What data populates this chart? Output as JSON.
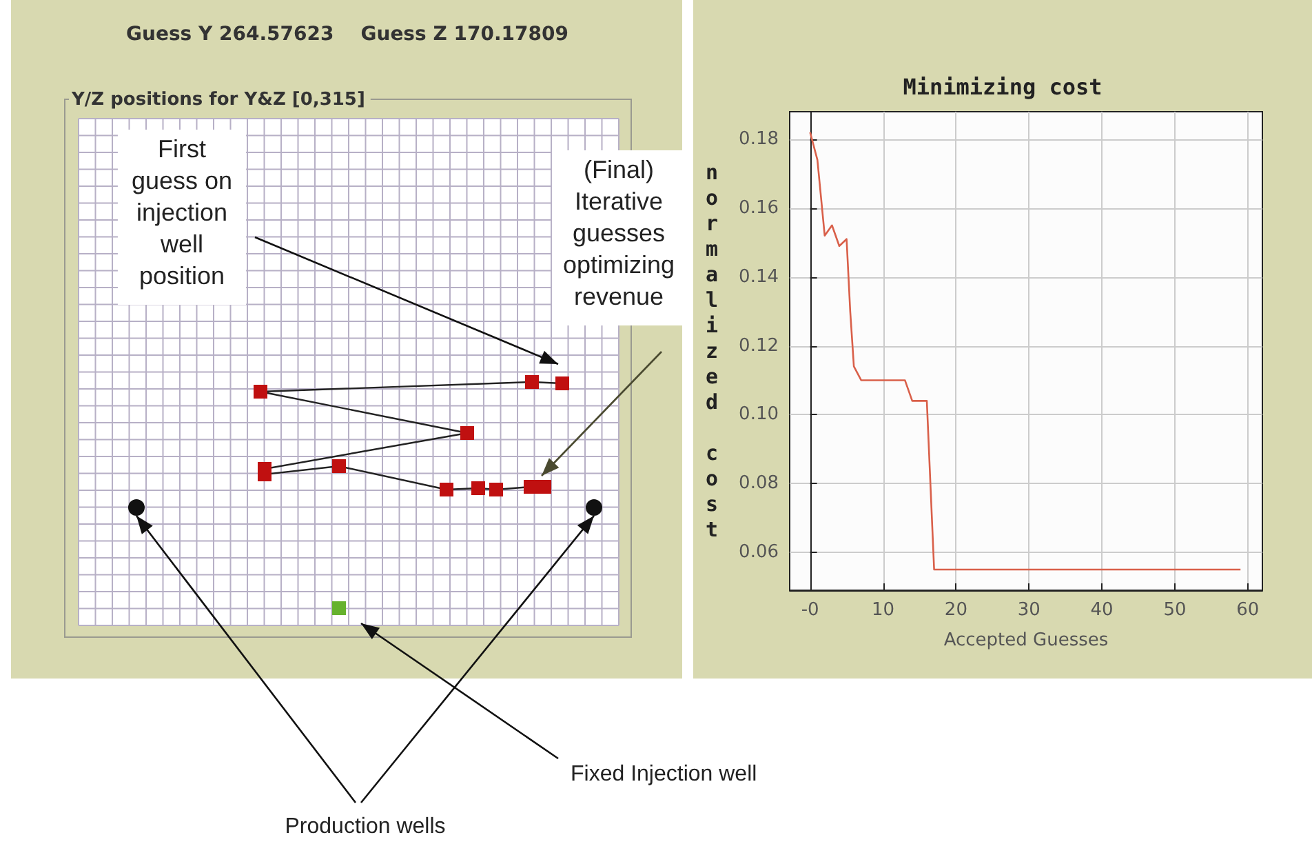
{
  "chart_data": [
    {
      "type": "other",
      "title": "Guess Y 264.57623    Guess Z 170.17809",
      "subtitle": "Y/Z positions for Y&Z [0,315]",
      "annotations": [
        "First guess on injection well position",
        "(Final) Iterative guesses optimizing revenue",
        "Fixed Injection well",
        "Production wells"
      ]
    },
    {
      "type": "line",
      "title": "Minimizing cost",
      "xlabel": "Accepted Guesses",
      "ylabel": "normalized cost",
      "x": [
        0,
        1,
        2,
        3,
        4,
        5,
        5.5,
        6,
        7,
        13,
        14,
        16,
        17,
        59
      ],
      "values": [
        0.182,
        0.174,
        0.152,
        0.155,
        0.149,
        0.151,
        0.13,
        0.114,
        0.11,
        0.11,
        0.104,
        0.104,
        0.055,
        0.055
      ],
      "color": "#d9604a",
      "xlim": [
        -2.8,
        62
      ],
      "ylim": [
        0.049,
        0.188
      ],
      "xticks": [
        {
          "value": 0,
          "label": "-0"
        },
        10,
        20,
        30,
        40,
        50,
        60
      ],
      "yticks": [
        0.06,
        0.08,
        {
          "value": 0.1,
          "label": "0.10"
        },
        0.12,
        0.14,
        0.16,
        0.18
      ],
      "grid": true
    }
  ]
}
